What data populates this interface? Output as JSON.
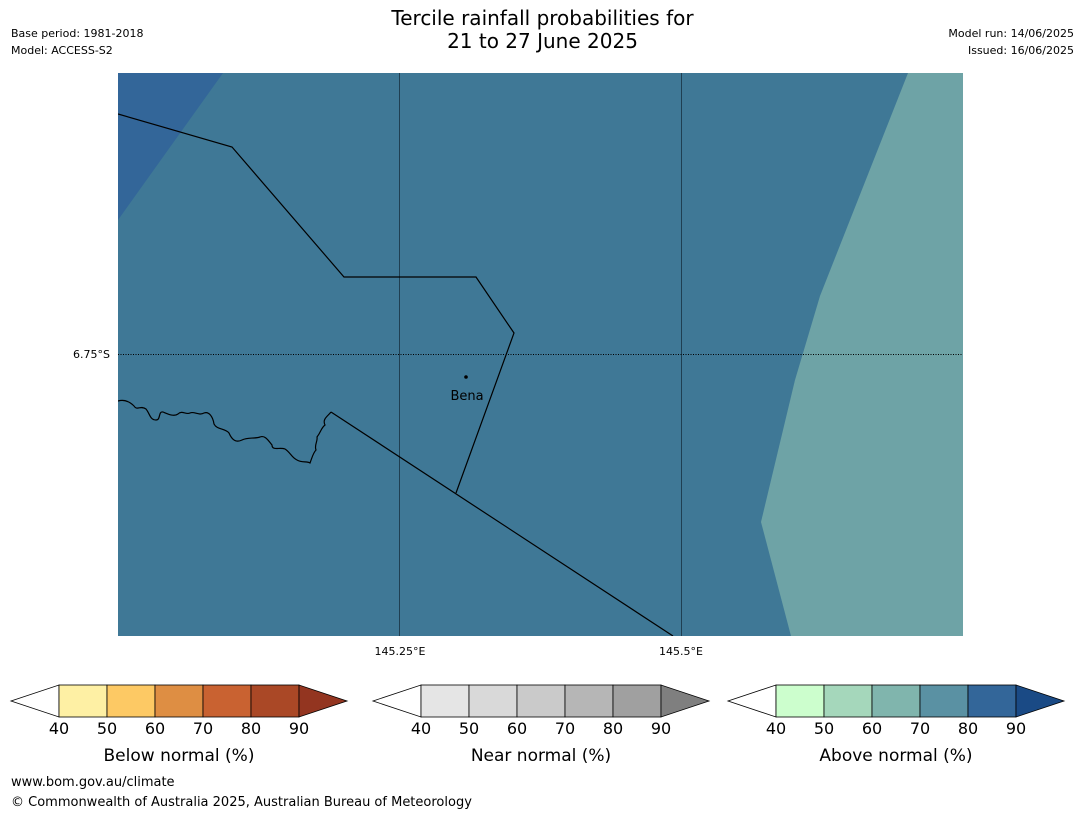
{
  "title": {
    "line1": "Tercile rainfall probabilities for",
    "line2": "21 to 27 June 2025"
  },
  "meta_left": {
    "base_period": "Base period: 1981-2018",
    "model": "Model: ACCESS-S2"
  },
  "meta_right": {
    "model_run": "Model run: 14/06/2025",
    "issued": "Issued: 16/06/2025"
  },
  "map": {
    "lat_labels": [
      "6.75°S"
    ],
    "lon_labels": [
      "145.25°E",
      "145.5°E"
    ],
    "place_label": "Bena",
    "colors": {
      "main_fill": "#3f7896",
      "corner_fill": "#336699",
      "east_fill": "#6ea3a6",
      "gridline": "#1f3f52",
      "border": "#000000"
    }
  },
  "legends": [
    {
      "id": "below",
      "title": "Below normal (%)",
      "ticks": [
        "40",
        "50",
        "60",
        "70",
        "80",
        "90"
      ],
      "colors": [
        "#fef0a4",
        "#fdc964",
        "#de8e43",
        "#c96231",
        "#aa4826"
      ],
      "extend_color": "#933520"
    },
    {
      "id": "near",
      "title": "Near normal (%)",
      "ticks": [
        "40",
        "50",
        "60",
        "70",
        "80",
        "90"
      ],
      "colors": [
        "#e5e5e5",
        "#d9d9d9",
        "#cacaca",
        "#b6b6b6",
        "#a0a0a0"
      ],
      "extend_color": "#7f7f7f"
    },
    {
      "id": "above",
      "title": "Above normal (%)",
      "ticks": [
        "40",
        "50",
        "60",
        "70",
        "80",
        "90"
      ],
      "colors": [
        "#ccfecd",
        "#a5d7bb",
        "#80b5ad",
        "#5a91a3",
        "#336699"
      ],
      "extend_color": "#1a4a85"
    }
  ],
  "footer": {
    "url": "www.bom.gov.au/climate",
    "copyright": "© Commonwealth of Australia 2025, Australian Bureau of Meteorology"
  }
}
